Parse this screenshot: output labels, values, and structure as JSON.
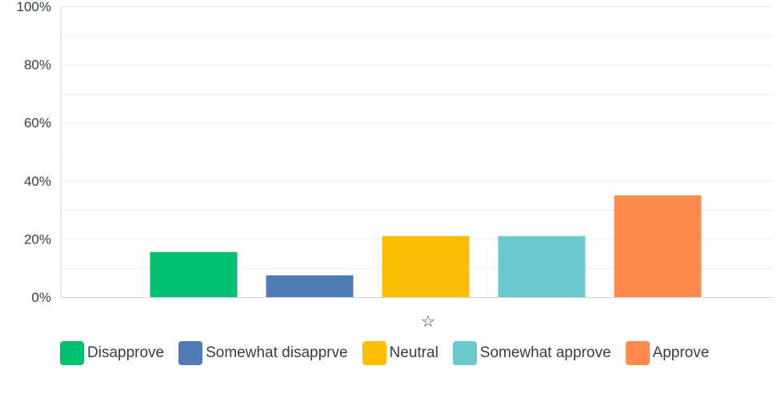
{
  "chart_data": {
    "type": "bar",
    "categories": [
      "Disapprove",
      "Somewhat disapprve",
      "Neutral",
      "Somewhat approve",
      "Approve"
    ],
    "values": [
      15.5,
      7.5,
      21,
      21,
      35
    ],
    "colors": [
      "#00bf6f",
      "#507cb6",
      "#f9be00",
      "#6bc8cd",
      "#ff8b4f"
    ],
    "ylim": [
      0,
      100
    ],
    "y_ticks": [
      "0%",
      "20%",
      "40%",
      "60%",
      "80%",
      "100%"
    ],
    "y_tick_values": [
      0,
      20,
      40,
      60,
      80,
      100
    ],
    "minor_gridlines_every": 10,
    "grid": true,
    "x_axis_icon": "star-outline-icon",
    "x_axis_glyph": "☆",
    "legend_position": "bottom"
  }
}
